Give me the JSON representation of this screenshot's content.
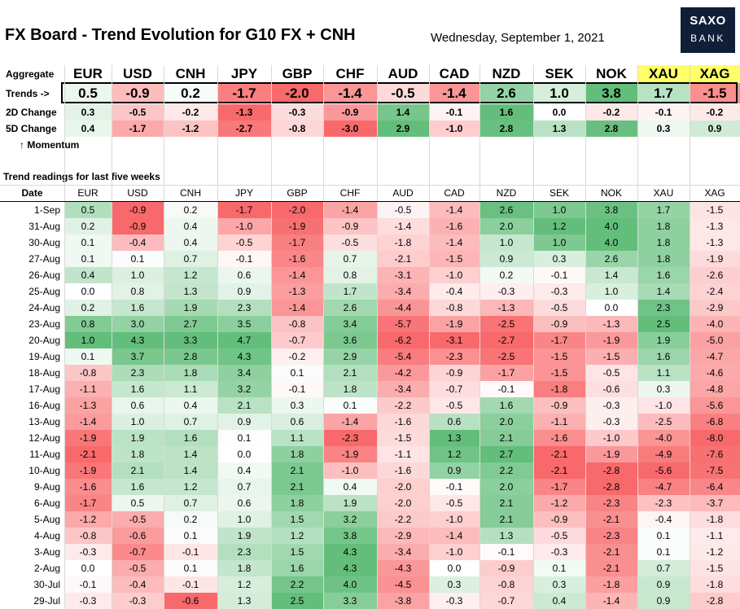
{
  "header": {
    "title": "FX Board - Trend Evolution for G10 FX + CNH",
    "date": "Wednesday, September 1, 2021",
    "logo_line1": "SAXO",
    "logo_line2": "BANK"
  },
  "currencies": [
    "EUR",
    "USD",
    "CNH",
    "JPY",
    "GBP",
    "CHF",
    "AUD",
    "CAD",
    "NZD",
    "SEK",
    "NOK",
    "XAU",
    "XAG"
  ],
  "labels": {
    "aggregate": "Aggregate",
    "trends": "Trends ->",
    "change2d": "2D Change",
    "change5d": "5D Change",
    "momentum": "↑ Momentum",
    "section": "Trend readings for last five weeks",
    "date": "Date"
  },
  "summary": {
    "trends": [
      "0.5",
      "-0.9",
      "0.2",
      "-1.7",
      "-2.0",
      "-1.4",
      "-0.5",
      "-1.4",
      "2.6",
      "1.0",
      "3.8",
      "1.7",
      "-1.5"
    ],
    "change2d": [
      "0.3",
      "-0.5",
      "-0.2",
      "-1.3",
      "-0.3",
      "-0.9",
      "1.4",
      "-0.1",
      "1.6",
      "0.0",
      "-0.2",
      "-0.1",
      "-0.2"
    ],
    "change5d": [
      "0.4",
      "-1.7",
      "-1.2",
      "-2.7",
      "-0.8",
      "-3.0",
      "2.9",
      "-1.0",
      "2.8",
      "1.3",
      "2.8",
      "0.3",
      "0.9"
    ]
  },
  "rows": [
    {
      "date": "1-Sep",
      "values": [
        "0.5",
        "-0.9",
        "0.2",
        "-1.7",
        "-2.0",
        "-1.4",
        "-0.5",
        "-1.4",
        "2.6",
        "1.0",
        "3.8",
        "1.7",
        "-1.5"
      ]
    },
    {
      "date": "31-Aug",
      "values": [
        "0.2",
        "-0.9",
        "0.4",
        "-1.0",
        "-1.9",
        "-0.9",
        "-1.4",
        "-1.6",
        "2.0",
        "1.2",
        "4.0",
        "1.8",
        "-1.3"
      ]
    },
    {
      "date": "30-Aug",
      "values": [
        "0.1",
        "-0.4",
        "0.4",
        "-0.5",
        "-1.7",
        "-0.5",
        "-1.8",
        "-1.4",
        "1.0",
        "1.0",
        "4.0",
        "1.8",
        "-1.3"
      ]
    },
    {
      "date": "27-Aug",
      "values": [
        "0.1",
        "0.1",
        "0.7",
        "-0.1",
        "-1.6",
        "0.7",
        "-2.1",
        "-1.5",
        "0.9",
        "0.3",
        "2.6",
        "1.8",
        "-1.9"
      ]
    },
    {
      "date": "26-Aug",
      "values": [
        "0.4",
        "1.0",
        "1.2",
        "0.6",
        "-1.4",
        "0.8",
        "-3.1",
        "-1.0",
        "0.2",
        "-0.1",
        "1.4",
        "1.6",
        "-2.6"
      ]
    },
    {
      "date": "25-Aug",
      "values": [
        "0.0",
        "0.8",
        "1.3",
        "0.9",
        "-1.3",
        "1.7",
        "-3.4",
        "-0.4",
        "-0.3",
        "-0.3",
        "1.0",
        "1.4",
        "-2.4"
      ]
    },
    {
      "date": "24-Aug",
      "values": [
        "0.2",
        "1.6",
        "1.9",
        "2.3",
        "-1.4",
        "2.6",
        "-4.4",
        "-0.8",
        "-1.3",
        "-0.5",
        "0.0",
        "2.3",
        "-2.9"
      ]
    },
    {
      "date": "23-Aug",
      "values": [
        "0.8",
        "3.0",
        "2.7",
        "3.5",
        "-0.8",
        "3.4",
        "-5.7",
        "-1.9",
        "-2.5",
        "-0.9",
        "-1.3",
        "2.5",
        "-4.0"
      ]
    },
    {
      "date": "20-Aug",
      "values": [
        "1.0",
        "4.3",
        "3.3",
        "4.7",
        "-0.7",
        "3.6",
        "-6.2",
        "-3.1",
        "-2.7",
        "-1.7",
        "-1.9",
        "1.9",
        "-5.0"
      ]
    },
    {
      "date": "19-Aug",
      "values": [
        "0.1",
        "3.7",
        "2.8",
        "4.3",
        "-0.2",
        "2.9",
        "-5.4",
        "-2.3",
        "-2.5",
        "-1.5",
        "-1.5",
        "1.6",
        "-4.7"
      ]
    },
    {
      "date": "18-Aug",
      "values": [
        "-0.8",
        "2.3",
        "1.8",
        "3.4",
        "0.1",
        "2.1",
        "-4.2",
        "-0.9",
        "-1.7",
        "-1.5",
        "-0.5",
        "1.1",
        "-4.6"
      ]
    },
    {
      "date": "17-Aug",
      "values": [
        "-1.1",
        "1.6",
        "1.1",
        "3.2",
        "-0.1",
        "1.8",
        "-3.4",
        "-0.7",
        "-0.1",
        "-1.8",
        "-0.6",
        "0.3",
        "-4.8"
      ]
    },
    {
      "date": "16-Aug",
      "values": [
        "-1.3",
        "0.6",
        "0.4",
        "2.1",
        "0.3",
        "0.1",
        "-2.2",
        "-0.5",
        "1.6",
        "-0.9",
        "-0.3",
        "-1.0",
        "-5.6"
      ]
    },
    {
      "date": "13-Aug",
      "values": [
        "-1.4",
        "1.0",
        "0.7",
        "0.9",
        "0.6",
        "-1.4",
        "-1.6",
        "0.6",
        "2.0",
        "-1.1",
        "-0.3",
        "-2.5",
        "-6.8"
      ]
    },
    {
      "date": "12-Aug",
      "values": [
        "-1.9",
        "1.9",
        "1.6",
        "0.1",
        "1.1",
        "-2.3",
        "-1.5",
        "1.3",
        "2.1",
        "-1.6",
        "-1.0",
        "-4.0",
        "-8.0"
      ]
    },
    {
      "date": "11-Aug",
      "values": [
        "-2.1",
        "1.8",
        "1.4",
        "0.0",
        "1.8",
        "-1.9",
        "-1.1",
        "1.2",
        "2.7",
        "-2.1",
        "-1.9",
        "-4.9",
        "-7.6"
      ]
    },
    {
      "date": "10-Aug",
      "values": [
        "-1.9",
        "2.1",
        "1.4",
        "0.4",
        "2.1",
        "-1.0",
        "-1.6",
        "0.9",
        "2.2",
        "-2.1",
        "-2.8",
        "-5.6",
        "-7.5"
      ]
    },
    {
      "date": "9-Aug",
      "values": [
        "-1.6",
        "1.6",
        "1.2",
        "0.7",
        "2.1",
        "0.4",
        "-2.0",
        "-0.1",
        "2.0",
        "-1.7",
        "-2.8",
        "-4.7",
        "-6.4"
      ]
    },
    {
      "date": "6-Aug",
      "values": [
        "-1.7",
        "0.5",
        "0.7",
        "0.6",
        "1.8",
        "1.9",
        "-2.0",
        "-0.5",
        "2.1",
        "-1.2",
        "-2.3",
        "-2.3",
        "-3.7"
      ]
    },
    {
      "date": "5-Aug",
      "values": [
        "-1.2",
        "-0.5",
        "0.2",
        "1.0",
        "1.5",
        "3.2",
        "-2.2",
        "-1.0",
        "2.1",
        "-0.9",
        "-2.1",
        "-0.4",
        "-1.8"
      ]
    },
    {
      "date": "4-Aug",
      "values": [
        "-0.8",
        "-0.6",
        "0.1",
        "1.9",
        "1.2",
        "3.8",
        "-2.9",
        "-1.4",
        "1.3",
        "-0.5",
        "-2.3",
        "0.1",
        "-1.1"
      ]
    },
    {
      "date": "3-Aug",
      "values": [
        "-0.3",
        "-0.7",
        "-0.1",
        "2.3",
        "1.5",
        "4.3",
        "-3.4",
        "-1.0",
        "-0.1",
        "-0.3",
        "-2.1",
        "0.1",
        "-1.2"
      ]
    },
    {
      "date": "2-Aug",
      "values": [
        "0.0",
        "-0.5",
        "0.1",
        "1.8",
        "1.6",
        "4.3",
        "-4.3",
        "0.0",
        "-0.9",
        "0.1",
        "-2.1",
        "0.7",
        "-1.5"
      ]
    },
    {
      "date": "30-Jul",
      "values": [
        "-0.1",
        "-0.4",
        "-0.1",
        "1.2",
        "2.2",
        "4.0",
        "-4.5",
        "0.3",
        "-0.8",
        "0.3",
        "-1.8",
        "0.9",
        "-1.8"
      ]
    },
    {
      "date": "29-Jul",
      "values": [
        "-0.3",
        "-0.3",
        "-0.6",
        "1.3",
        "2.5",
        "3.3",
        "-3.8",
        "-0.3",
        "-0.7",
        "0.4",
        "-1.4",
        "0.9",
        "-2.8"
      ]
    }
  ]
}
